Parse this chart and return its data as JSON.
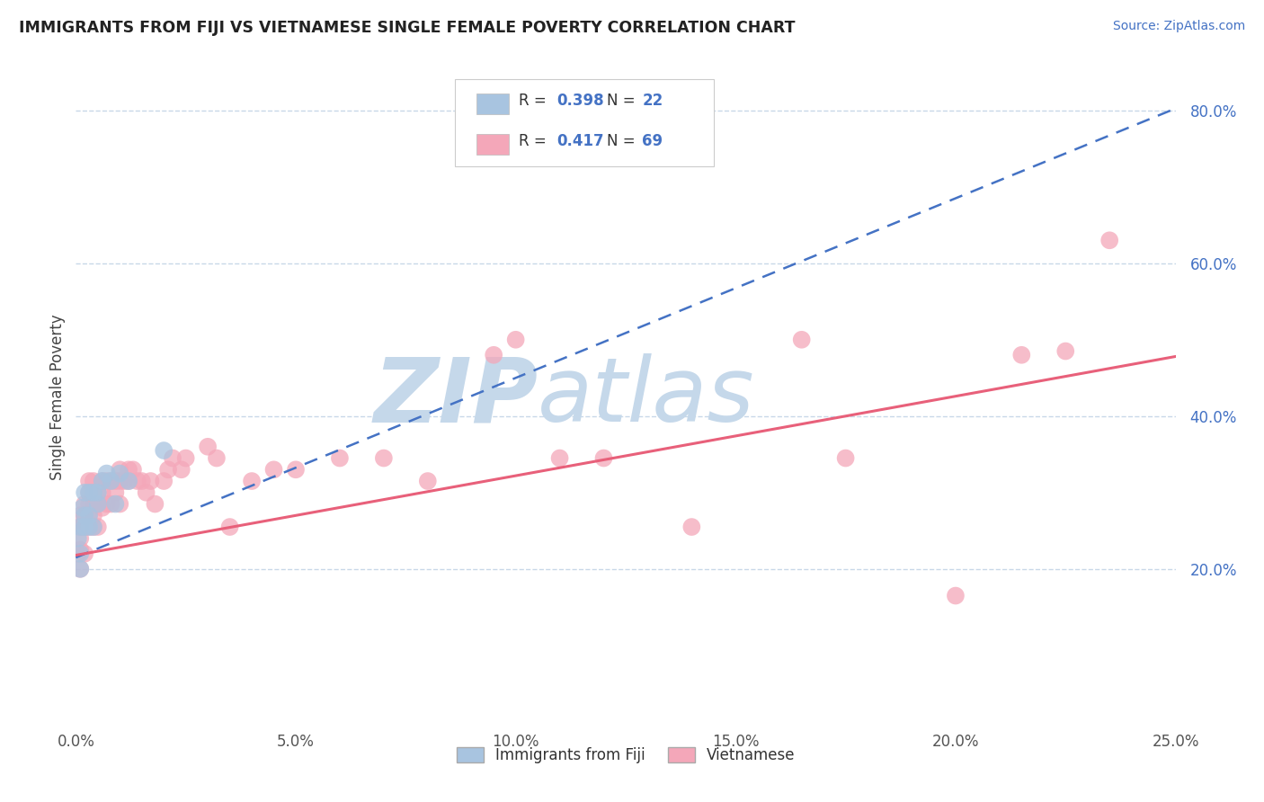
{
  "title": "IMMIGRANTS FROM FIJI VS VIETNAMESE SINGLE FEMALE POVERTY CORRELATION CHART",
  "source": "Source: ZipAtlas.com",
  "ylabel": "Single Female Poverty",
  "fiji_label": "Immigrants from Fiji",
  "vietnamese_label": "Vietnamese",
  "fiji_R": 0.398,
  "fiji_N": 22,
  "vietnamese_R": 0.417,
  "vietnamese_N": 69,
  "xlim": [
    0.0,
    0.25
  ],
  "ylim": [
    0.0,
    0.85
  ],
  "xticks": [
    0.0,
    0.05,
    0.1,
    0.15,
    0.2,
    0.25
  ],
  "xticklabels": [
    "0.0%",
    "5.0%",
    "10.0%",
    "15.0%",
    "20.0%",
    "25.0%"
  ],
  "yticks": [
    0.0,
    0.2,
    0.4,
    0.6,
    0.8
  ],
  "yticklabels": [
    "",
    "20.0%",
    "40.0%",
    "60.0%",
    "80.0%"
  ],
  "fiji_color": "#a8c4e0",
  "fiji_edge_color": "#7aafd4",
  "vietnamese_color": "#f4a7b9",
  "viet_edge_color": "#e87a96",
  "fiji_trend_color": "#4472c4",
  "vietnamese_trend_color": "#e8607a",
  "grid_color": "#c8d8e8",
  "background_color": "#ffffff",
  "watermark_zip": "ZIP",
  "watermark_atlas": "atlas",
  "watermark_color_zip": "#c5d8ea",
  "watermark_color_atlas": "#c5d8ea",
  "fiji_trend_intercept": 0.215,
  "fiji_trend_slope": 2.35,
  "viet_trend_intercept": 0.218,
  "viet_trend_slope": 1.04,
  "fiji_x": [
    0.0005,
    0.001,
    0.001,
    0.001,
    0.0015,
    0.002,
    0.002,
    0.002,
    0.003,
    0.003,
    0.003,
    0.004,
    0.004,
    0.005,
    0.005,
    0.006,
    0.007,
    0.008,
    0.009,
    0.01,
    0.012,
    0.02
  ],
  "fiji_y": [
    0.24,
    0.2,
    0.22,
    0.255,
    0.28,
    0.3,
    0.255,
    0.27,
    0.3,
    0.27,
    0.255,
    0.3,
    0.255,
    0.3,
    0.285,
    0.315,
    0.325,
    0.315,
    0.285,
    0.325,
    0.315,
    0.355
  ],
  "viet_x": [
    0.0005,
    0.001,
    0.001,
    0.001,
    0.001,
    0.001,
    0.0015,
    0.002,
    0.002,
    0.002,
    0.002,
    0.003,
    0.003,
    0.003,
    0.003,
    0.003,
    0.004,
    0.004,
    0.004,
    0.004,
    0.005,
    0.005,
    0.005,
    0.006,
    0.006,
    0.006,
    0.007,
    0.007,
    0.008,
    0.008,
    0.009,
    0.009,
    0.01,
    0.01,
    0.01,
    0.011,
    0.012,
    0.012,
    0.013,
    0.014,
    0.015,
    0.016,
    0.017,
    0.018,
    0.02,
    0.021,
    0.022,
    0.024,
    0.025,
    0.03,
    0.032,
    0.035,
    0.04,
    0.045,
    0.05,
    0.06,
    0.07,
    0.08,
    0.095,
    0.1,
    0.11,
    0.12,
    0.14,
    0.165,
    0.175,
    0.2,
    0.215,
    0.225,
    0.235
  ],
  "viet_y": [
    0.22,
    0.2,
    0.225,
    0.24,
    0.255,
    0.27,
    0.255,
    0.22,
    0.255,
    0.27,
    0.285,
    0.255,
    0.27,
    0.285,
    0.3,
    0.315,
    0.255,
    0.27,
    0.285,
    0.315,
    0.255,
    0.285,
    0.3,
    0.28,
    0.3,
    0.315,
    0.285,
    0.315,
    0.285,
    0.315,
    0.3,
    0.315,
    0.285,
    0.315,
    0.33,
    0.315,
    0.315,
    0.33,
    0.33,
    0.315,
    0.315,
    0.3,
    0.315,
    0.285,
    0.315,
    0.33,
    0.345,
    0.33,
    0.345,
    0.36,
    0.345,
    0.255,
    0.315,
    0.33,
    0.33,
    0.345,
    0.345,
    0.315,
    0.48,
    0.5,
    0.345,
    0.345,
    0.255,
    0.5,
    0.345,
    0.165,
    0.48,
    0.485,
    0.63
  ]
}
